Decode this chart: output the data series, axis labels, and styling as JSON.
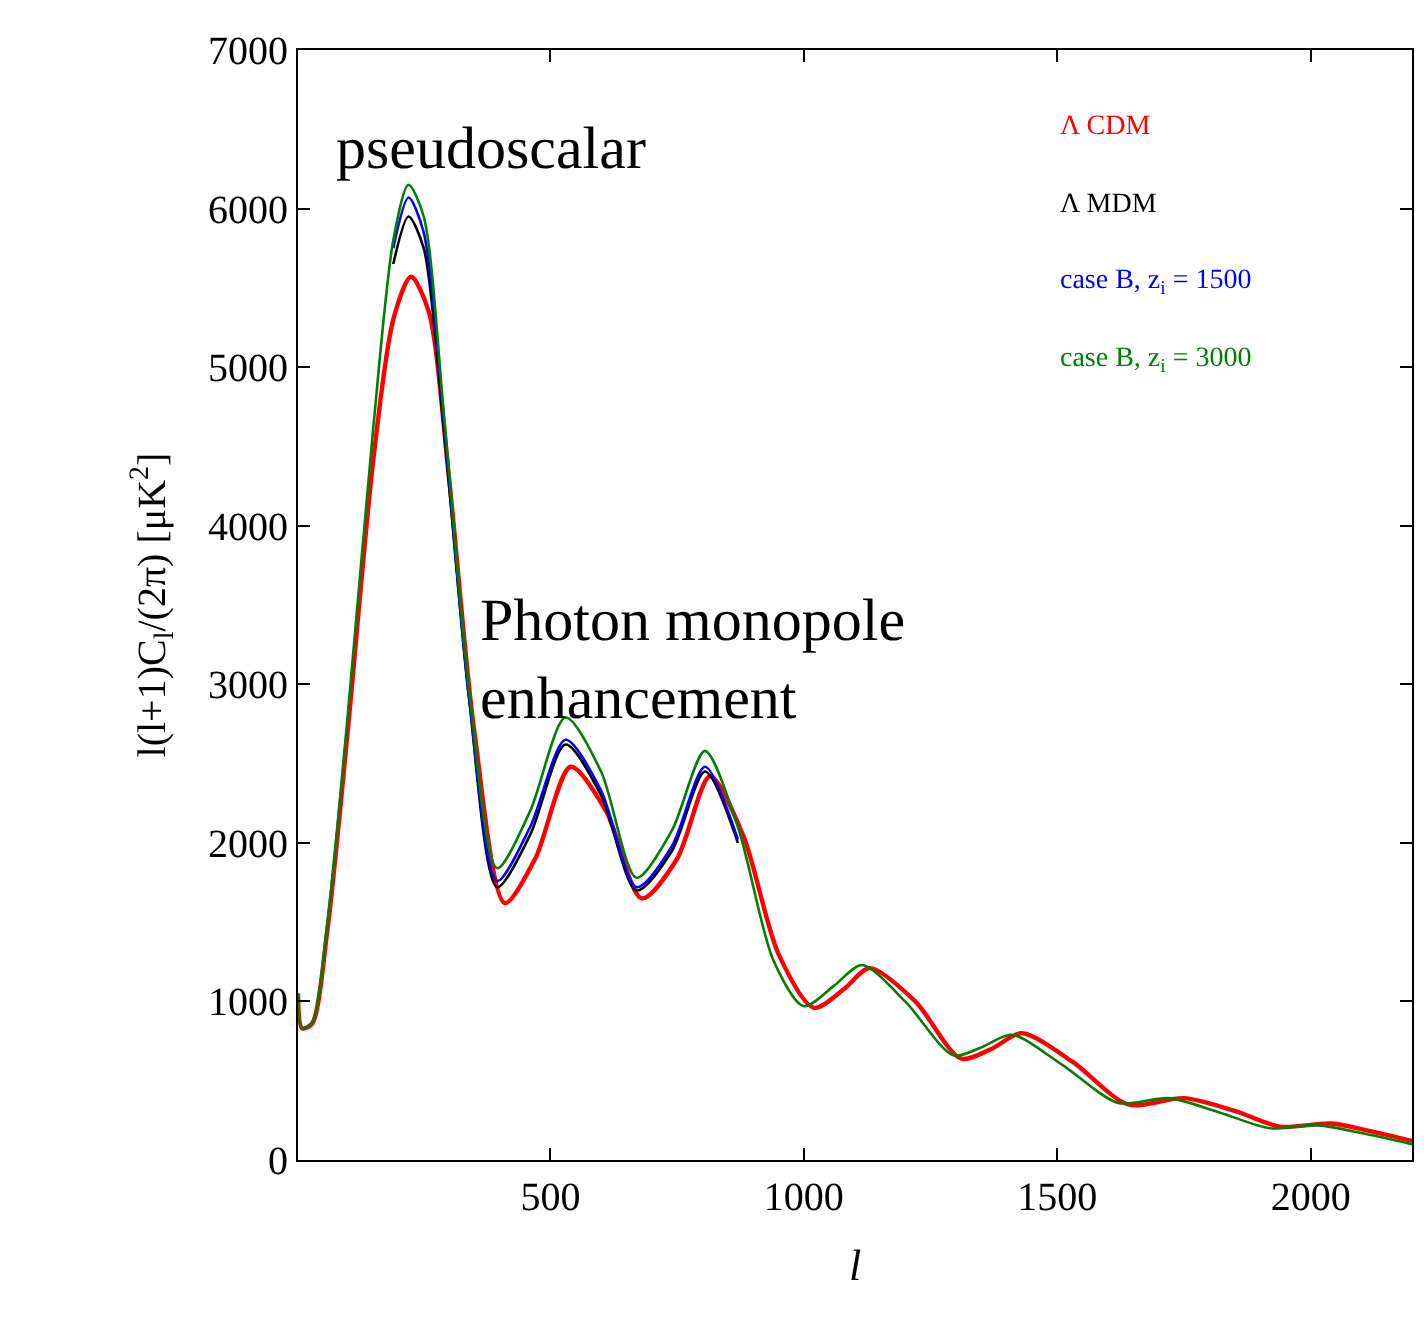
{
  "chart_data": {
    "type": "line",
    "xlabel": "l",
    "ylabel": "l(l+1)C$_{l}$/(2π) [μK$^{2}$]",
    "annotations": [
      "pseudoscalar",
      "Photon monopole\nenhancement"
    ],
    "xlim": [
      2,
      2200
    ],
    "xticks": [
      500,
      1000,
      1500,
      2000
    ],
    "ylim": [
      0,
      7000
    ],
    "yticks": [
      0,
      1000,
      2000,
      3000,
      4000,
      5000,
      6000,
      7000
    ],
    "marker": "none",
    "line_style": "solid",
    "x": [
      2,
      10,
      30,
      60,
      100,
      150,
      190,
      220,
      250,
      290,
      340,
      395,
      460,
      530,
      600,
      670,
      740,
      805,
      870,
      940,
      1000,
      1060,
      1115,
      1200,
      1295,
      1350,
      1410,
      1510,
      1620,
      1720,
      1820,
      1920,
      2010,
      2100,
      2200
    ],
    "series": [
      {
        "name": "Λ CDM",
        "color": "#ff0000",
        "x": [
          2,
          10,
          30,
          60,
          100,
          150,
          190,
          225,
          260,
          300,
          350,
          410,
          470,
          540,
          610,
          680,
          750,
          815,
          880,
          950,
          1020,
          1080,
          1130,
          1220,
          1310,
          1370,
          1430,
          1530,
          1640,
          1750,
          1850,
          1940,
          2040,
          2120,
          2200
        ],
        "values": [
          1050,
          830,
          860,
          1450,
          2700,
          4400,
          5300,
          5570,
          5350,
          4300,
          2700,
          1620,
          1900,
          2480,
          2200,
          1650,
          1900,
          2420,
          2050,
          1300,
          960,
          1080,
          1210,
          1000,
          640,
          700,
          800,
          620,
          350,
          390,
          310,
          210,
          230,
          180,
          120
        ]
      },
      {
        "name": "Λ MDM",
        "color": "#000000",
        "values": [
          null,
          null,
          null,
          null,
          null,
          null,
          5650,
          5950,
          5750,
          4600,
          2900,
          1720,
          2050,
          2620,
          2300,
          1700,
          1950,
          2450,
          2000,
          null,
          null,
          null,
          null,
          null,
          null,
          null,
          null,
          null,
          null,
          null,
          null,
          null,
          null,
          null,
          null
        ]
      },
      {
        "name": "case B, z$_{i}$ = 1500",
        "color": "#0000ff",
        "values": [
          null,
          null,
          null,
          null,
          null,
          null,
          5750,
          6070,
          5850,
          4650,
          2900,
          1760,
          2100,
          2650,
          2330,
          1720,
          1980,
          2480,
          2020,
          null,
          null,
          null,
          null,
          null,
          null,
          null,
          null,
          null,
          null,
          null,
          null,
          null,
          null,
          null,
          null
        ]
      },
      {
        "name": "case B, z$_{i}$ = 3000",
        "color": "#008000",
        "values": [
          1050,
          830,
          870,
          1500,
          2800,
          4600,
          5800,
          6150,
          5950,
          4700,
          2950,
          1840,
          2200,
          2790,
          2450,
          1780,
          2080,
          2580,
          2100,
          1260,
          970,
          1100,
          1230,
          1000,
          660,
          710,
          790,
          600,
          360,
          390,
          300,
          200,
          220,
          170,
          100
        ]
      }
    ]
  }
}
